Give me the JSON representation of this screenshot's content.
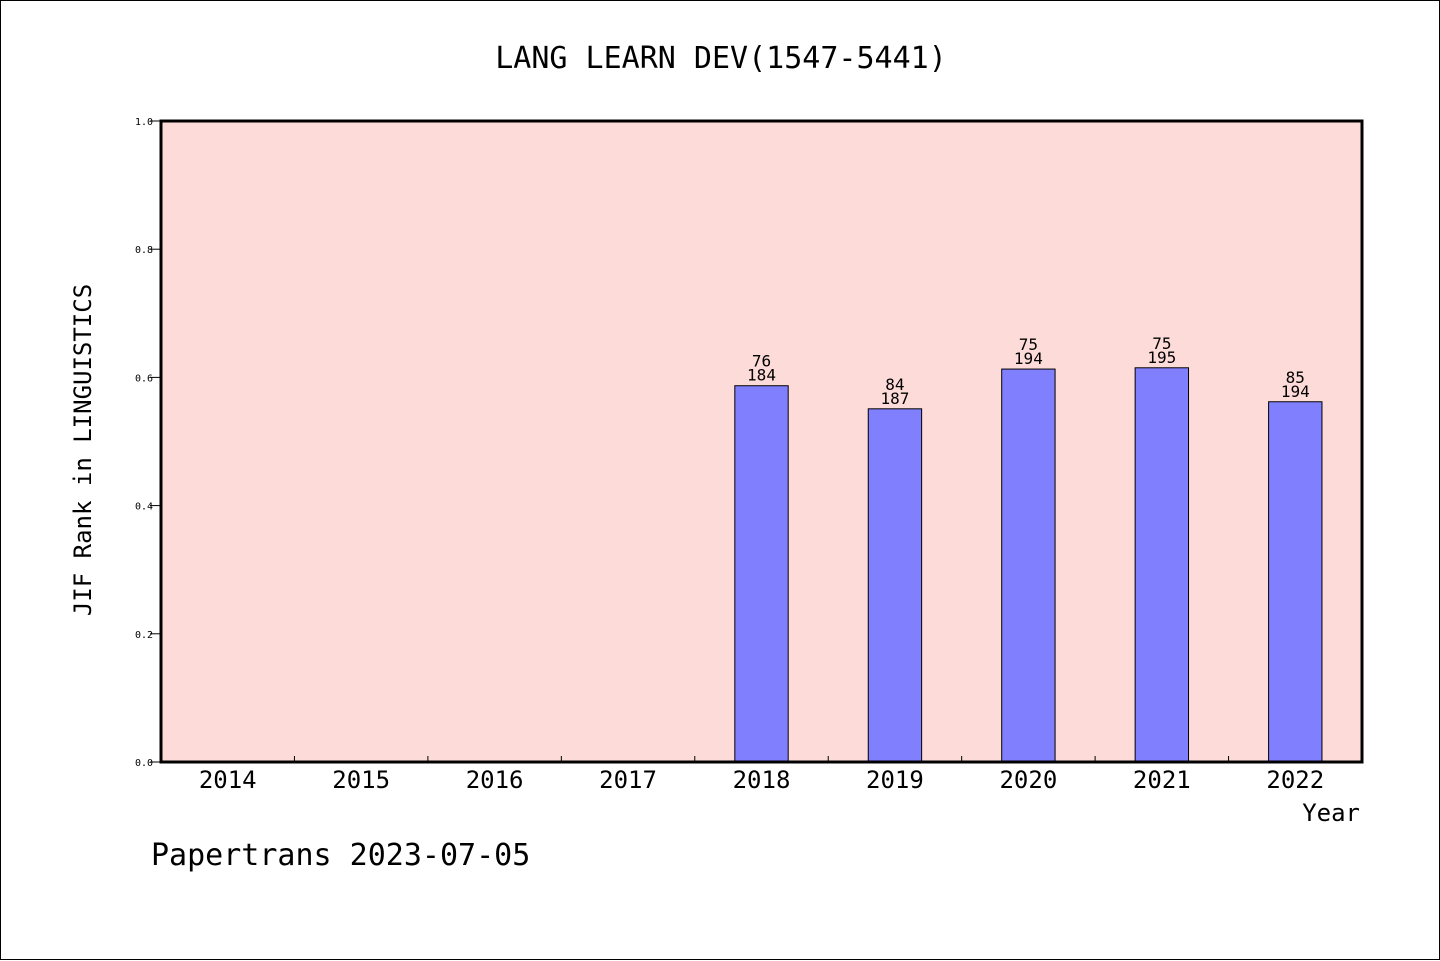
{
  "chart_data": {
    "type": "bar",
    "title": "LANG LEARN DEV(1547-5441)",
    "xlabel": "Year",
    "ylabel": "JIF Rank in LINGUISTICS",
    "footer": "Papertrans 2023-07-05",
    "categories": [
      "2014",
      "2015",
      "2016",
      "2017",
      "2018",
      "2019",
      "2020",
      "2021",
      "2022"
    ],
    "values": [
      null,
      null,
      null,
      null,
      0.587,
      0.551,
      0.613,
      0.615,
      0.562
    ],
    "rank_labels": [
      "",
      "",
      "",
      "",
      "76",
      "84",
      "75",
      "75",
      "85"
    ],
    "total_labels": [
      "",
      "",
      "",
      "",
      "184",
      "187",
      "194",
      "195",
      "194"
    ],
    "ylim": [
      0,
      1.0
    ],
    "yticks": [
      "0.0",
      "0.2",
      "0.4",
      "0.6",
      "0.8",
      "1.0"
    ],
    "grid": false,
    "colors": {
      "plot_background": "#fddbd8",
      "bar_fill": "#8080ff",
      "bar_stroke": "#000000",
      "axis": "#000000",
      "text": "#000000"
    }
  }
}
